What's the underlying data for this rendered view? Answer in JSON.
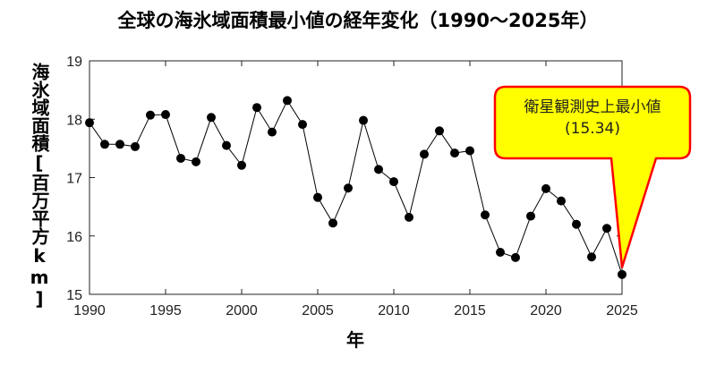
{
  "chart_data": {
    "type": "line",
    "title": "全球の海氷域面積最小値の経年変化（1990〜2025年）",
    "xlabel": "年",
    "ylabel": "海氷域面積[百万平方km]",
    "xlim": [
      1990,
      2025
    ],
    "ylim": [
      15,
      19
    ],
    "xticks": [
      1990,
      1995,
      2000,
      2005,
      2010,
      2015,
      2020,
      2025
    ],
    "yticks": [
      15,
      16,
      17,
      18,
      19
    ],
    "grid": false,
    "marker": "circle",
    "line_color": "#000000",
    "marker_color": "#000000",
    "x": [
      1990,
      1991,
      1992,
      1993,
      1994,
      1995,
      1996,
      1997,
      1998,
      1999,
      2000,
      2001,
      2002,
      2003,
      2004,
      2005,
      2006,
      2007,
      2008,
      2009,
      2010,
      2011,
      2012,
      2013,
      2014,
      2015,
      2016,
      2017,
      2018,
      2019,
      2020,
      2021,
      2022,
      2023,
      2024,
      2025
    ],
    "values": [
      17.94,
      17.57,
      17.57,
      17.53,
      18.07,
      18.08,
      17.33,
      17.27,
      18.03,
      17.55,
      17.21,
      18.2,
      17.78,
      18.32,
      17.91,
      16.66,
      16.22,
      16.82,
      17.98,
      17.14,
      16.93,
      16.32,
      17.4,
      17.8,
      17.42,
      17.46,
      16.36,
      15.72,
      15.63,
      16.34,
      16.81,
      16.6,
      16.2,
      15.64,
      16.13,
      15.34
    ],
    "annotation": {
      "text_line1": "衛星観測史上最小値",
      "text_line2": "(15.34)",
      "target_x": 2025,
      "target_y": 15.34,
      "fill_color": "#ffff00",
      "border_color": "#ff0000"
    }
  }
}
